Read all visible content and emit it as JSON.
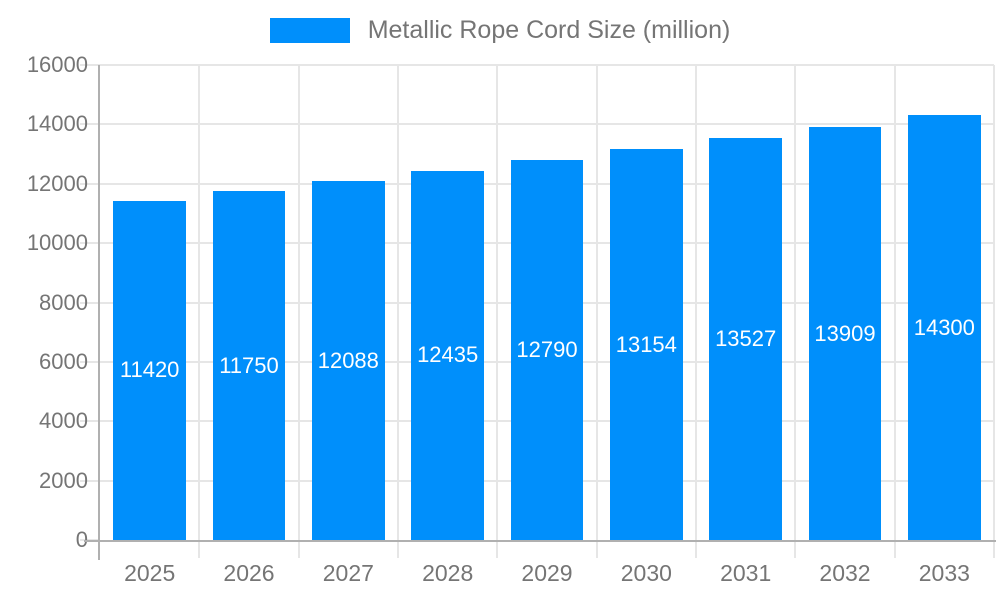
{
  "legend": {
    "label": "Metallic Rope Cord Size (million)"
  },
  "colors": {
    "bar": "#008FFB",
    "axis": "#b0b0b0",
    "grid": "#e6e6e6",
    "axis_text": "#757575",
    "bar_label_text": "#ffffff",
    "background": "#ffffff"
  },
  "chart_data": {
    "type": "bar",
    "title": "Metallic Rope Cord Size (million)",
    "categories": [
      "2025",
      "2026",
      "2027",
      "2028",
      "2029",
      "2030",
      "2031",
      "2032",
      "2033"
    ],
    "values": [
      11420,
      11750,
      12088,
      12435,
      12790,
      13154,
      13527,
      13909,
      14300
    ],
    "series": [
      {
        "name": "Metallic Rope Cord Size (million)",
        "values": [
          11420,
          11750,
          12088,
          12435,
          12790,
          13154,
          13527,
          13909,
          14300
        ]
      }
    ],
    "xlabel": "",
    "ylabel": "",
    "ylim": [
      0,
      16000
    ],
    "yticks": [
      0,
      2000,
      4000,
      6000,
      8000,
      10000,
      12000,
      14000,
      16000
    ],
    "grid": true,
    "legend_position": "top",
    "bar_value_labels": "inside-center-white"
  }
}
